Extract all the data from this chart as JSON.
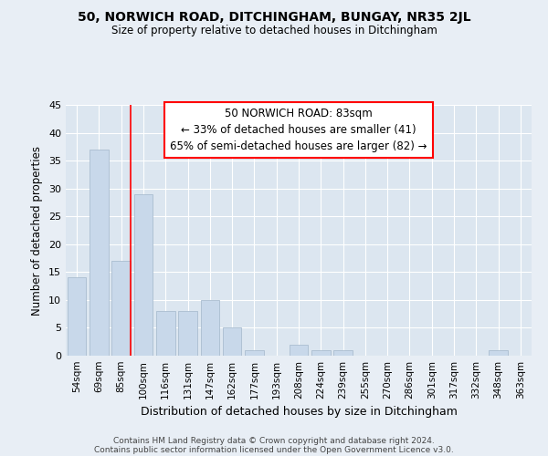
{
  "title": "50, NORWICH ROAD, DITCHINGHAM, BUNGAY, NR35 2JL",
  "subtitle": "Size of property relative to detached houses in Ditchingham",
  "xlabel": "Distribution of detached houses by size in Ditchingham",
  "ylabel": "Number of detached properties",
  "categories": [
    "54sqm",
    "69sqm",
    "85sqm",
    "100sqm",
    "116sqm",
    "131sqm",
    "147sqm",
    "162sqm",
    "177sqm",
    "193sqm",
    "208sqm",
    "224sqm",
    "239sqm",
    "255sqm",
    "270sqm",
    "286sqm",
    "301sqm",
    "317sqm",
    "332sqm",
    "348sqm",
    "363sqm"
  ],
  "values": [
    14,
    37,
    17,
    29,
    8,
    8,
    10,
    5,
    1,
    0,
    2,
    1,
    1,
    0,
    0,
    0,
    0,
    0,
    0,
    1,
    0
  ],
  "bar_color": "#c8d8ea",
  "bar_edge_color": "#aabdd0",
  "red_line_index": 2,
  "annotation_title": "50 NORWICH ROAD: 83sqm",
  "annotation_line1": "← 33% of detached houses are smaller (41)",
  "annotation_line2": "65% of semi-detached houses are larger (82) →",
  "ylim": [
    0,
    45
  ],
  "yticks": [
    0,
    5,
    10,
    15,
    20,
    25,
    30,
    35,
    40,
    45
  ],
  "footer1": "Contains HM Land Registry data © Crown copyright and database right 2024.",
  "footer2": "Contains public sector information licensed under the Open Government Licence v3.0.",
  "background_color": "#e8eef5",
  "plot_bg_color": "#dce6f0"
}
